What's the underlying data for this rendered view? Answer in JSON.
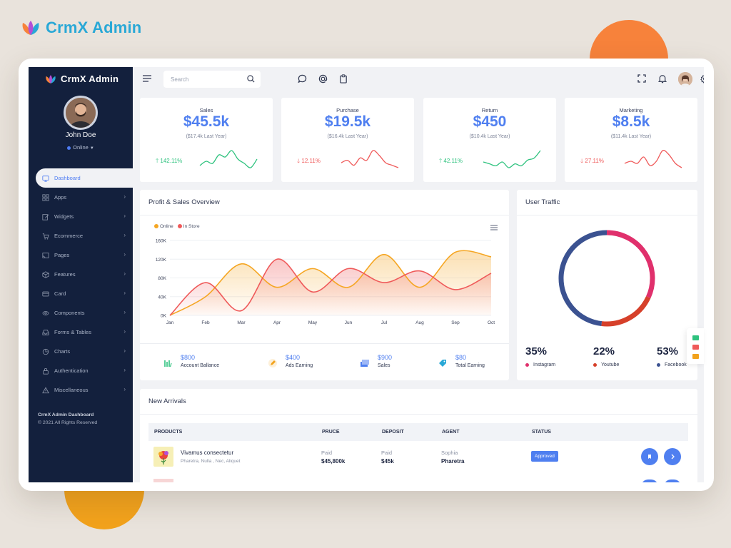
{
  "brand": {
    "name": "CrmX Admin"
  },
  "sidebar": {
    "brand": "CrmX Admin",
    "user": {
      "name": "John Doe",
      "status": "Online"
    },
    "items": [
      {
        "label": "Dashboard",
        "icon": "monitor-icon",
        "active": true
      },
      {
        "label": "Apps",
        "icon": "grid-icon"
      },
      {
        "label": "Widgets",
        "icon": "edit-icon"
      },
      {
        "label": "Ecommerce",
        "icon": "cart-icon"
      },
      {
        "label": "Pages",
        "icon": "cast-icon"
      },
      {
        "label": "Features",
        "icon": "box-icon"
      },
      {
        "label": "Card",
        "icon": "credit-card-icon"
      },
      {
        "label": "Components",
        "icon": "eye-icon"
      },
      {
        "label": "Forms & Tables",
        "icon": "inbox-icon"
      },
      {
        "label": "Charts",
        "icon": "pie-chart-icon"
      },
      {
        "label": "Authentication",
        "icon": "lock-icon"
      },
      {
        "label": "Miscellaneous",
        "icon": "alert-triangle-icon"
      }
    ],
    "footer": {
      "title": "CrmX Admin Dashboard",
      "copyright": "© 2021 All Rights Reserved"
    }
  },
  "topbar": {
    "search_placeholder": "Search"
  },
  "stats": [
    {
      "label": "Sales",
      "value": "$45.5k",
      "sub": "($17.4k Last Year)",
      "trend": "142.11%",
      "direction": "up",
      "color": "#2ec27e",
      "spark": [
        5,
        7,
        6,
        10,
        9,
        12,
        8,
        6,
        4,
        8
      ]
    },
    {
      "label": "Purchase",
      "value": "$19.5k",
      "sub": "($16.4k Last Year)",
      "trend": "12.11%",
      "direction": "down",
      "color": "#ef5a5a",
      "spark": [
        5,
        6,
        4,
        7,
        6,
        10,
        8,
        5,
        4,
        3
      ]
    },
    {
      "label": "Return",
      "value": "$450",
      "sub": "($10.4k Last Year)",
      "trend": "42.11%",
      "direction": "up",
      "color": "#2ec27e",
      "spark": [
        6,
        5,
        4,
        6,
        3,
        5,
        4,
        7,
        8,
        12
      ]
    },
    {
      "label": "Marketing",
      "value": "$8.5k",
      "sub": "($11.4k Last Year)",
      "trend": "27.11%",
      "direction": "down",
      "color": "#ef5a5a",
      "spark": [
        5,
        6,
        5,
        8,
        4,
        6,
        11,
        9,
        5,
        3
      ]
    }
  ],
  "overview": {
    "title": "Profit & Sales Overview",
    "summary": [
      {
        "value": "$800",
        "label": "Account Ballance",
        "icon": "bars-icon",
        "color": "#2ec27e"
      },
      {
        "value": "$400",
        "label": "Ads Earning",
        "icon": "pencil-icon",
        "color": "#f2a21c"
      },
      {
        "value": "$900",
        "label": "Sales",
        "icon": "layers-icon",
        "color": "#4f7ff0"
      },
      {
        "value": "$80",
        "label": "Total Earning",
        "icon": "tag-icon",
        "color": "#29a8d6"
      }
    ]
  },
  "chart_data": {
    "type": "area",
    "categories": [
      "Jan",
      "Feb",
      "Mar",
      "Apr",
      "May",
      "Jun",
      "Jul",
      "Aug",
      "Sep",
      "Oct"
    ],
    "yticks": [
      "0K",
      "40K",
      "80K",
      "120K",
      "160K"
    ],
    "ylim": [
      0,
      160000
    ],
    "grid": true,
    "legend_position": "top-left",
    "series": [
      {
        "name": "Online",
        "color": "#f5a623",
        "values": [
          0,
          40000,
          110000,
          60000,
          100000,
          60000,
          130000,
          60000,
          135000,
          125000
        ]
      },
      {
        "name": "In Store",
        "color": "#ef5a5a",
        "values": [
          0,
          70000,
          10000,
          120000,
          50000,
          100000,
          70000,
          95000,
          55000,
          90000
        ]
      }
    ]
  },
  "traffic": {
    "title": "User Traffic",
    "chart_data": {
      "type": "pie",
      "slices": [
        {
          "name": "Instagram",
          "value": 35,
          "color": "#e0306c"
        },
        {
          "name": "Youtube",
          "value": 22,
          "color": "#d6402a"
        },
        {
          "name": "Facebook",
          "value": 53,
          "color": "#3b5291"
        }
      ]
    },
    "stats": [
      {
        "value": "35%",
        "label": "Instagram",
        "color": "#e0306c"
      },
      {
        "value": "22%",
        "label": "Youtube",
        "color": "#d6402a"
      },
      {
        "value": "53%",
        "label": "Facebook",
        "color": "#3b5291"
      }
    ]
  },
  "arrivals": {
    "title": "New Arrivals",
    "columns": [
      "PRODUCTS",
      "PRUCE",
      "DEPOSIT",
      "AGENT",
      "STATUS"
    ],
    "rows": [
      {
        "name": "Vivamus consectetur",
        "tags": "Pharetra, Nulla , Nec, Aliquet",
        "price_status": "Paid",
        "price": "$45,800k",
        "deposit_status": "Paid",
        "deposit": "$45k",
        "agent": "Sophia",
        "agent_company": "Pharetra",
        "status": "Approved"
      }
    ]
  }
}
